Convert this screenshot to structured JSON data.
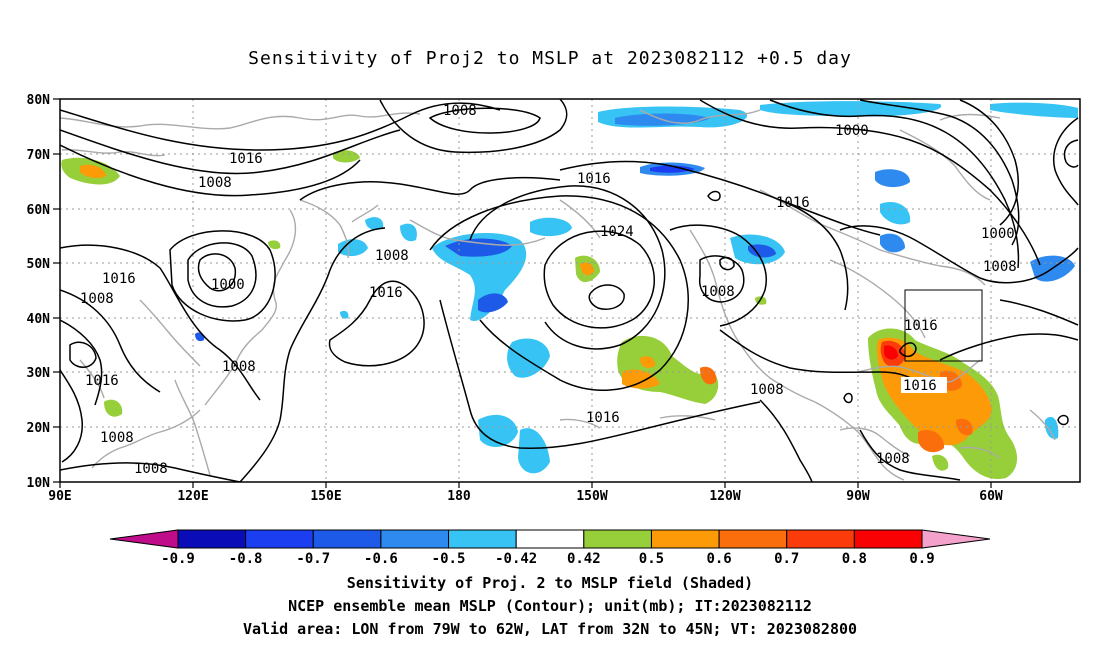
{
  "title": "Sensitivity of Proj2 to MSLP at 2023082112 +0.5 day",
  "lat_labels": [
    "80N",
    "70N",
    "60N",
    "50N",
    "40N",
    "30N",
    "20N",
    "10N"
  ],
  "lon_labels": [
    "90E",
    "120E",
    "150E",
    "180",
    "150W",
    "120W",
    "90W",
    "60W"
  ],
  "contour_labels": [
    "1008",
    "1016",
    "1008",
    "1000",
    "1016",
    "1008",
    "1016",
    "1008",
    "1008",
    "1016",
    "1008",
    "1016",
    "1024",
    "1016",
    "1008",
    "1016",
    "1016",
    "1008",
    "1008",
    "1000",
    "1000",
    "1008",
    "1008",
    "1016"
  ],
  "colorbar": {
    "labels": [
      "-0.9",
      "-0.8",
      "-0.7",
      "-0.6",
      "-0.5",
      "-0.42",
      "0.42",
      "0.5",
      "0.6",
      "0.7",
      "0.8",
      "0.9"
    ],
    "colors": [
      "#bf0c8a",
      "#0a0cb8",
      "#1a3ef0",
      "#1e5ae8",
      "#2f8af0",
      "#37c4f4",
      "#ffffff",
      "#97cf3a",
      "#fc9a08",
      "#fb6e0c",
      "#fb3b0a",
      "#f90203",
      "#f4a1cc"
    ]
  },
  "captions": [
    "Sensitivity of Proj. 2 to MSLP field (Shaded)",
    "NCEP ensemble mean MSLP (Contour); unit(mb); IT:2023082112",
    "Valid area: LON from 79W to 62W, LAT from 32N to 45N; VT: 2023082800"
  ]
}
